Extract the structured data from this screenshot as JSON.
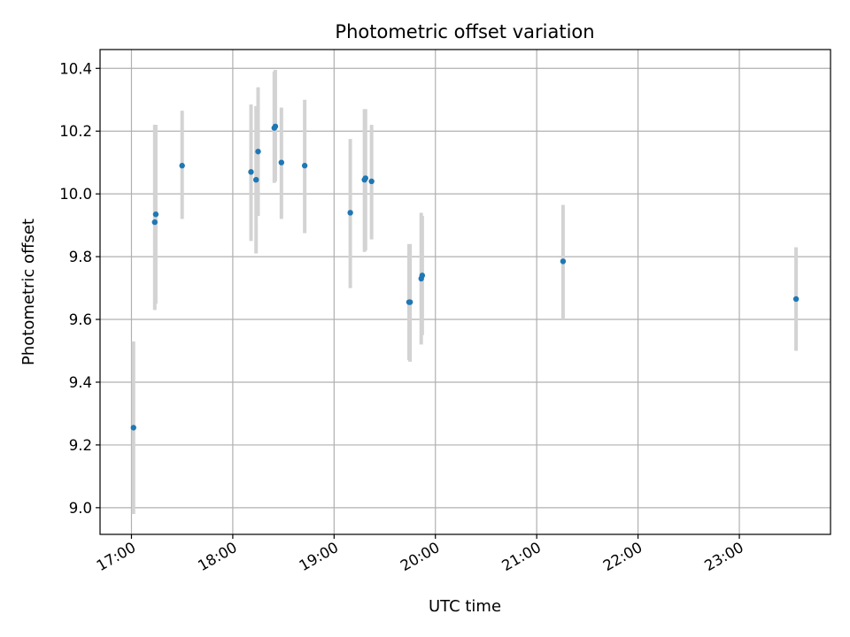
{
  "chart_data": {
    "type": "scatter",
    "title": "Photometric offset variation",
    "xlabel": "UTC time",
    "ylabel": "Photometric offset",
    "x_unit": "UTC time of day (hours)",
    "xlim": [
      16.69,
      23.9
    ],
    "ylim": [
      8.915,
      10.46
    ],
    "grid": true,
    "x_ticks": [
      {
        "value": 17,
        "label": "17:00"
      },
      {
        "value": 18,
        "label": "18:00"
      },
      {
        "value": 19,
        "label": "19:00"
      },
      {
        "value": 20,
        "label": "20:00"
      },
      {
        "value": 21,
        "label": "21:00"
      },
      {
        "value": 22,
        "label": "22:00"
      },
      {
        "value": 23,
        "label": "23:00"
      }
    ],
    "y_ticks": [
      {
        "value": 9.0,
        "label": "9.0"
      },
      {
        "value": 9.2,
        "label": "9.2"
      },
      {
        "value": 9.4,
        "label": "9.4"
      },
      {
        "value": 9.6,
        "label": "9.6"
      },
      {
        "value": 9.8,
        "label": "9.8"
      },
      {
        "value": 10.0,
        "label": "10.0"
      },
      {
        "value": 10.2,
        "label": "10.2"
      },
      {
        "value": 10.4,
        "label": "10.4"
      }
    ],
    "colors": {
      "point": "#1f77b4",
      "errorbar": "#d3d3d3",
      "grid": "#b0b0b0"
    },
    "points": [
      {
        "x": 17.02,
        "y": 9.255,
        "yerr_low": 8.98,
        "yerr_high": 9.53
      },
      {
        "x": 17.23,
        "y": 9.91,
        "yerr_low": 9.63,
        "yerr_high": 10.22
      },
      {
        "x": 17.24,
        "y": 9.935,
        "yerr_low": 9.65,
        "yerr_high": 10.22
      },
      {
        "x": 17.5,
        "y": 10.09,
        "yerr_low": 9.92,
        "yerr_high": 10.265
      },
      {
        "x": 18.18,
        "y": 10.07,
        "yerr_low": 9.85,
        "yerr_high": 10.285
      },
      {
        "x": 18.23,
        "y": 10.045,
        "yerr_low": 9.81,
        "yerr_high": 10.28
      },
      {
        "x": 18.25,
        "y": 10.135,
        "yerr_low": 9.93,
        "yerr_high": 10.34
      },
      {
        "x": 18.41,
        "y": 10.21,
        "yerr_low": 10.035,
        "yerr_high": 10.39
      },
      {
        "x": 18.42,
        "y": 10.215,
        "yerr_low": 10.04,
        "yerr_high": 10.395
      },
      {
        "x": 18.48,
        "y": 10.1,
        "yerr_low": 9.92,
        "yerr_high": 10.275
      },
      {
        "x": 18.71,
        "y": 10.09,
        "yerr_low": 9.875,
        "yerr_high": 10.3
      },
      {
        "x": 19.16,
        "y": 9.94,
        "yerr_low": 9.7,
        "yerr_high": 10.175
      },
      {
        "x": 19.3,
        "y": 10.045,
        "yerr_low": 9.815,
        "yerr_high": 10.27
      },
      {
        "x": 19.31,
        "y": 10.05,
        "yerr_low": 9.82,
        "yerr_high": 10.27
      },
      {
        "x": 19.37,
        "y": 10.04,
        "yerr_low": 9.855,
        "yerr_high": 10.22
      },
      {
        "x": 19.74,
        "y": 9.655,
        "yerr_low": 9.47,
        "yerr_high": 9.84
      },
      {
        "x": 19.75,
        "y": 9.655,
        "yerr_low": 9.465,
        "yerr_high": 9.84
      },
      {
        "x": 19.86,
        "y": 9.73,
        "yerr_low": 9.52,
        "yerr_high": 9.94
      },
      {
        "x": 19.87,
        "y": 9.74,
        "yerr_low": 9.55,
        "yerr_high": 9.93
      },
      {
        "x": 21.26,
        "y": 9.785,
        "yerr_low": 9.6,
        "yerr_high": 9.965
      },
      {
        "x": 23.56,
        "y": 9.665,
        "yerr_low": 9.5,
        "yerr_high": 9.83
      }
    ]
  }
}
